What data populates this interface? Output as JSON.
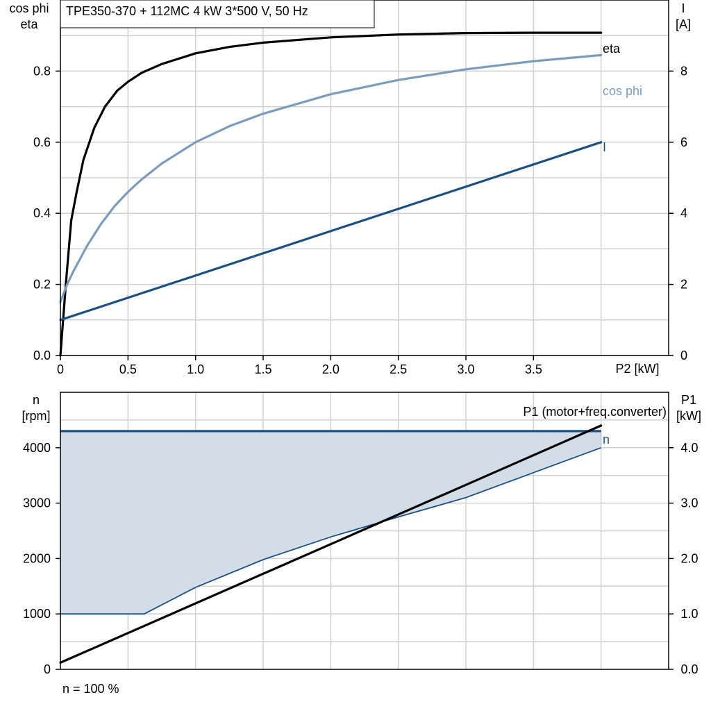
{
  "title": "TPE350-370 + 112MC   4 kW   3*500 V, 50 Hz",
  "footnote": "n = 100 %",
  "colors": {
    "eta": "#000000",
    "cos_phi": "#7a9cba",
    "current": "#1c4f82",
    "speed": "#1c4f82",
    "speed_fill": "#d2dde8",
    "p1": "#000000",
    "grid": "#d0d0d0"
  },
  "chart_data": [
    {
      "type": "line",
      "xlabel": "P2 [kW]",
      "ylabel_left": [
        "cos phi",
        "eta"
      ],
      "ylabel_right": [
        "I",
        "[A]"
      ],
      "xlim": [
        0,
        4.5
      ],
      "ylim_left": [
        0,
        1.0
      ],
      "ylim_right": [
        0,
        10
      ],
      "x_ticks": [
        "0",
        "0.5",
        "1.0",
        "1.5",
        "2.0",
        "2.5",
        "3.0",
        "3.5"
      ],
      "y_ticks_left": [
        "0.0",
        "0.2",
        "0.4",
        "0.6",
        "0.8"
      ],
      "y_ticks_right": [
        "0",
        "2",
        "4",
        "6",
        "8"
      ],
      "grid": true,
      "series": [
        {
          "name": "eta",
          "axis": "left",
          "color": "#000000",
          "x": [
            0,
            0.04,
            0.08,
            0.12,
            0.17,
            0.25,
            0.33,
            0.42,
            0.5,
            0.6,
            0.75,
            1.0,
            1.25,
            1.5,
            2.0,
            2.5,
            3.0,
            3.5,
            4.0
          ],
          "y": [
            0,
            0.2,
            0.38,
            0.46,
            0.55,
            0.64,
            0.7,
            0.745,
            0.77,
            0.795,
            0.82,
            0.85,
            0.868,
            0.88,
            0.895,
            0.903,
            0.907,
            0.908,
            0.908
          ]
        },
        {
          "name": "cos phi",
          "axis": "left",
          "color": "#7a9cba",
          "x": [
            0,
            0.05,
            0.1,
            0.2,
            0.3,
            0.4,
            0.5,
            0.6,
            0.75,
            1.0,
            1.25,
            1.5,
            2.0,
            2.5,
            3.0,
            3.5,
            4.0
          ],
          "y": [
            0.15,
            0.2,
            0.24,
            0.31,
            0.37,
            0.42,
            0.46,
            0.495,
            0.54,
            0.6,
            0.645,
            0.68,
            0.735,
            0.775,
            0.805,
            0.828,
            0.845
          ]
        },
        {
          "name": "I",
          "axis": "right",
          "color": "#1c4f82",
          "x": [
            0,
            4.0
          ],
          "y": [
            1.0,
            6.0
          ]
        }
      ]
    },
    {
      "type": "area",
      "xlim": [
        0,
        4.5
      ],
      "ylabel_left": [
        "n",
        "[rpm]"
      ],
      "ylabel_right": [
        "P1",
        "[kW]"
      ],
      "ylim_left": [
        0,
        5000
      ],
      "ylim_right": [
        0,
        5.0
      ],
      "y_ticks_left": [
        "0",
        "1000",
        "2000",
        "3000",
        "4000"
      ],
      "y_ticks_right": [
        "0.0",
        "1.0",
        "2.0",
        "3.0",
        "4.0"
      ],
      "grid": true,
      "p1_label": "P1 (motor+freq.converter)",
      "series": [
        {
          "name": "n",
          "axis": "left",
          "color": "#1c4f82",
          "upper_x": [
            0,
            4.0
          ],
          "upper_y": [
            4300,
            4300
          ],
          "lower_x": [
            0,
            0.62,
            1.0,
            1.5,
            2.0,
            2.5,
            3.0,
            3.5,
            4.0
          ],
          "lower_y": [
            1000,
            1000,
            1480,
            1980,
            2390,
            2750,
            3100,
            3550,
            4000
          ]
        },
        {
          "name": "P1",
          "axis": "right",
          "color": "#000000",
          "x": [
            0,
            4.0
          ],
          "y": [
            0.12,
            4.4
          ]
        }
      ]
    }
  ]
}
